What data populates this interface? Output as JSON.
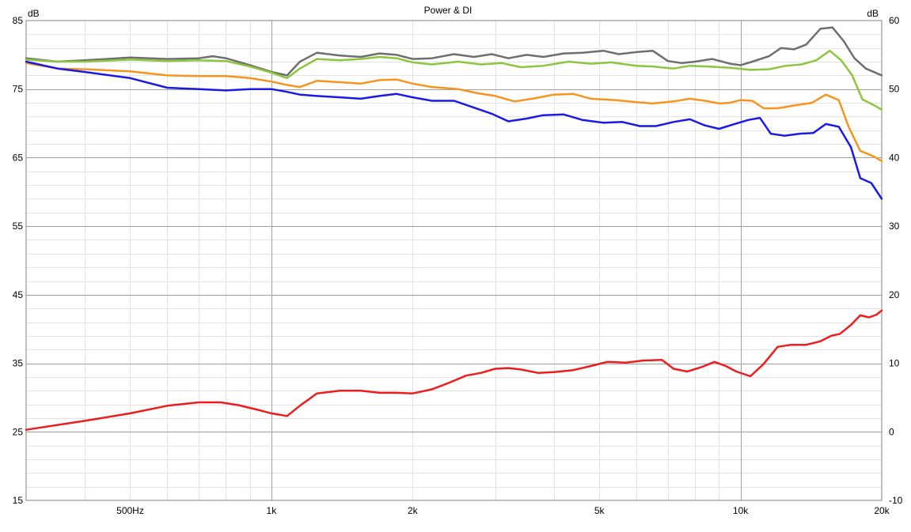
{
  "chart_data": {
    "type": "line",
    "title": "Power & DI",
    "ylabel_left": "dB",
    "ylabel_right": "dB",
    "xscale": "log",
    "xlim": [
      300,
      20000
    ],
    "ylim_left": [
      15,
      85
    ],
    "ylim_right": [
      -10,
      60
    ],
    "grid": true,
    "x_ticks": [
      {
        "value": 500,
        "label": "500Hz"
      },
      {
        "value": 1000,
        "label": "1k"
      },
      {
        "value": 2000,
        "label": "2k"
      },
      {
        "value": 5000,
        "label": "5k"
      },
      {
        "value": 10000,
        "label": "10k"
      },
      {
        "value": 20000,
        "label": "20k"
      }
    ],
    "y_ticks_left": [
      {
        "value": 85,
        "label": "85"
      },
      {
        "value": 75,
        "label": "75"
      },
      {
        "value": 65,
        "label": "65"
      },
      {
        "value": 55,
        "label": "55"
      },
      {
        "value": 45,
        "label": "45"
      },
      {
        "value": 35,
        "label": "35"
      },
      {
        "value": 25,
        "label": "25"
      },
      {
        "value": 15,
        "label": "15"
      }
    ],
    "y_ticks_right": [
      {
        "value": 60,
        "label": "60"
      },
      {
        "value": 50,
        "label": "50"
      },
      {
        "value": 40,
        "label": "40"
      },
      {
        "value": 30,
        "label": "30"
      },
      {
        "value": 20,
        "label": "20"
      },
      {
        "value": 10,
        "label": "10"
      },
      {
        "value": 0,
        "label": "0"
      },
      {
        "value": -10,
        "label": "-10"
      }
    ],
    "series": [
      {
        "color": "#6e6e6e",
        "axis": "left",
        "points": [
          [
            300,
            79.5
          ],
          [
            350,
            79
          ],
          [
            400,
            79.2
          ],
          [
            500,
            79.6
          ],
          [
            600,
            79.4
          ],
          [
            700,
            79.5
          ],
          [
            750,
            79.8
          ],
          [
            800,
            79.5
          ],
          [
            900,
            78.5
          ],
          [
            1000,
            77.5
          ],
          [
            1080,
            77
          ],
          [
            1150,
            79
          ],
          [
            1250,
            80.3
          ],
          [
            1400,
            79.9
          ],
          [
            1550,
            79.7
          ],
          [
            1700,
            80.2
          ],
          [
            1850,
            80
          ],
          [
            2000,
            79.4
          ],
          [
            2200,
            79.5
          ],
          [
            2450,
            80.1
          ],
          [
            2700,
            79.7
          ],
          [
            2950,
            80.1
          ],
          [
            3200,
            79.5
          ],
          [
            3500,
            80
          ],
          [
            3800,
            79.7
          ],
          [
            4200,
            80.2
          ],
          [
            4600,
            80.3
          ],
          [
            5100,
            80.6
          ],
          [
            5500,
            80.1
          ],
          [
            6000,
            80.4
          ],
          [
            6500,
            80.6
          ],
          [
            7000,
            79.1
          ],
          [
            7500,
            78.8
          ],
          [
            8000,
            79
          ],
          [
            8700,
            79.4
          ],
          [
            9500,
            78.7
          ],
          [
            10000,
            78.5
          ],
          [
            10600,
            79
          ],
          [
            11500,
            79.8
          ],
          [
            12200,
            81
          ],
          [
            13000,
            80.8
          ],
          [
            13800,
            81.5
          ],
          [
            14800,
            83.8
          ],
          [
            15700,
            84
          ],
          [
            16600,
            82
          ],
          [
            17500,
            79.5
          ],
          [
            18500,
            78
          ],
          [
            20000,
            77
          ]
        ]
      },
      {
        "color": "#8cc63e",
        "axis": "left",
        "points": [
          [
            300,
            79.3
          ],
          [
            350,
            79
          ],
          [
            400,
            79
          ],
          [
            500,
            79.3
          ],
          [
            600,
            79.1
          ],
          [
            700,
            79.2
          ],
          [
            800,
            79.1
          ],
          [
            900,
            78.3
          ],
          [
            1000,
            77.4
          ],
          [
            1080,
            76.6
          ],
          [
            1150,
            78
          ],
          [
            1250,
            79.4
          ],
          [
            1400,
            79.2
          ],
          [
            1550,
            79.4
          ],
          [
            1700,
            79.7
          ],
          [
            1850,
            79.5
          ],
          [
            2000,
            78.9
          ],
          [
            2200,
            78.6
          ],
          [
            2500,
            79
          ],
          [
            2800,
            78.6
          ],
          [
            3100,
            78.8
          ],
          [
            3400,
            78.2
          ],
          [
            3800,
            78.4
          ],
          [
            4300,
            79
          ],
          [
            4800,
            78.7
          ],
          [
            5300,
            78.9
          ],
          [
            6000,
            78.4
          ],
          [
            6500,
            78.3
          ],
          [
            7200,
            78
          ],
          [
            7800,
            78.4
          ],
          [
            8500,
            78.3
          ],
          [
            9500,
            78.1
          ],
          [
            10500,
            77.8
          ],
          [
            11500,
            77.9
          ],
          [
            12500,
            78.4
          ],
          [
            13500,
            78.6
          ],
          [
            14500,
            79.2
          ],
          [
            15500,
            80.6
          ],
          [
            16400,
            79.2
          ],
          [
            17300,
            77
          ],
          [
            18200,
            73.5
          ],
          [
            19200,
            72.7
          ],
          [
            20000,
            72
          ]
        ]
      },
      {
        "color": "#f7941d",
        "axis": "left",
        "points": [
          [
            300,
            78.8
          ],
          [
            350,
            78
          ],
          [
            400,
            77.9
          ],
          [
            500,
            77.6
          ],
          [
            600,
            77
          ],
          [
            700,
            76.9
          ],
          [
            800,
            76.9
          ],
          [
            900,
            76.6
          ],
          [
            1000,
            76.1
          ],
          [
            1080,
            75.6
          ],
          [
            1150,
            75.3
          ],
          [
            1250,
            76.2
          ],
          [
            1400,
            76
          ],
          [
            1550,
            75.8
          ],
          [
            1700,
            76.3
          ],
          [
            1850,
            76.4
          ],
          [
            2000,
            75.8
          ],
          [
            2200,
            75.3
          ],
          [
            2500,
            75
          ],
          [
            2750,
            74.4
          ],
          [
            3000,
            74
          ],
          [
            3300,
            73.2
          ],
          [
            3600,
            73.6
          ],
          [
            4000,
            74.2
          ],
          [
            4400,
            74.3
          ],
          [
            4800,
            73.6
          ],
          [
            5400,
            73.4
          ],
          [
            6000,
            73.1
          ],
          [
            6500,
            72.9
          ],
          [
            7200,
            73.2
          ],
          [
            7800,
            73.6
          ],
          [
            8400,
            73.3
          ],
          [
            9000,
            72.9
          ],
          [
            9500,
            73
          ],
          [
            10000,
            73.4
          ],
          [
            10600,
            73.3
          ],
          [
            11200,
            72.2
          ],
          [
            12000,
            72.2
          ],
          [
            13000,
            72.6
          ],
          [
            14200,
            73
          ],
          [
            15200,
            74.2
          ],
          [
            16200,
            73.4
          ],
          [
            17000,
            69.5
          ],
          [
            18000,
            66
          ],
          [
            19200,
            65.2
          ],
          [
            20000,
            64.5
          ]
        ]
      },
      {
        "color": "#1a1ae6",
        "axis": "left",
        "points": [
          [
            300,
            79
          ],
          [
            350,
            78
          ],
          [
            400,
            77.5
          ],
          [
            500,
            76.6
          ],
          [
            600,
            75.2
          ],
          [
            700,
            75
          ],
          [
            800,
            74.8
          ],
          [
            900,
            75
          ],
          [
            1000,
            75
          ],
          [
            1080,
            74.6
          ],
          [
            1150,
            74.2
          ],
          [
            1250,
            74
          ],
          [
            1400,
            73.8
          ],
          [
            1550,
            73.6
          ],
          [
            1700,
            74
          ],
          [
            1850,
            74.3
          ],
          [
            2000,
            73.8
          ],
          [
            2200,
            73.3
          ],
          [
            2450,
            73.3
          ],
          [
            2700,
            72.3
          ],
          [
            2950,
            71.4
          ],
          [
            3200,
            70.3
          ],
          [
            3500,
            70.7
          ],
          [
            3800,
            71.2
          ],
          [
            4200,
            71.3
          ],
          [
            4600,
            70.5
          ],
          [
            5100,
            70.1
          ],
          [
            5600,
            70.2
          ],
          [
            6100,
            69.6
          ],
          [
            6600,
            69.6
          ],
          [
            7200,
            70.2
          ],
          [
            7800,
            70.6
          ],
          [
            8400,
            69.7
          ],
          [
            9000,
            69.2
          ],
          [
            9600,
            69.8
          ],
          [
            10400,
            70.5
          ],
          [
            11000,
            70.8
          ],
          [
            11600,
            68.5
          ],
          [
            12400,
            68.2
          ],
          [
            13400,
            68.5
          ],
          [
            14300,
            68.6
          ],
          [
            15200,
            69.9
          ],
          [
            16200,
            69.5
          ],
          [
            17200,
            66.5
          ],
          [
            18000,
            62
          ],
          [
            19000,
            61.3
          ],
          [
            20000,
            59
          ]
        ]
      },
      {
        "color": "#ee1c1c",
        "axis": "right",
        "points": [
          [
            300,
            0.3
          ],
          [
            400,
            1.6
          ],
          [
            500,
            2.7
          ],
          [
            600,
            3.8
          ],
          [
            700,
            4.3
          ],
          [
            780,
            4.3
          ],
          [
            850,
            3.9
          ],
          [
            950,
            3.1
          ],
          [
            1000,
            2.7
          ],
          [
            1080,
            2.3
          ],
          [
            1150,
            3.8
          ],
          [
            1250,
            5.6
          ],
          [
            1400,
            6
          ],
          [
            1550,
            6
          ],
          [
            1700,
            5.7
          ],
          [
            1850,
            5.7
          ],
          [
            2000,
            5.6
          ],
          [
            2200,
            6.2
          ],
          [
            2400,
            7.2
          ],
          [
            2600,
            8.2
          ],
          [
            2800,
            8.6
          ],
          [
            3000,
            9.2
          ],
          [
            3200,
            9.3
          ],
          [
            3400,
            9.1
          ],
          [
            3700,
            8.6
          ],
          [
            4000,
            8.7
          ],
          [
            4400,
            9
          ],
          [
            4800,
            9.6
          ],
          [
            5200,
            10.2
          ],
          [
            5700,
            10.1
          ],
          [
            6200,
            10.4
          ],
          [
            6800,
            10.5
          ],
          [
            7200,
            9.2
          ],
          [
            7700,
            8.8
          ],
          [
            8300,
            9.5
          ],
          [
            8800,
            10.2
          ],
          [
            9300,
            9.6
          ],
          [
            9800,
            8.8
          ],
          [
            10500,
            8.1
          ],
          [
            11200,
            9.9
          ],
          [
            12000,
            12.4
          ],
          [
            12800,
            12.7
          ],
          [
            13800,
            12.7
          ],
          [
            14800,
            13.2
          ],
          [
            15600,
            14
          ],
          [
            16300,
            14.3
          ],
          [
            17200,
            15.6
          ],
          [
            18000,
            17
          ],
          [
            18800,
            16.7
          ],
          [
            19500,
            17.1
          ],
          [
            20000,
            17.7
          ]
        ]
      }
    ]
  }
}
